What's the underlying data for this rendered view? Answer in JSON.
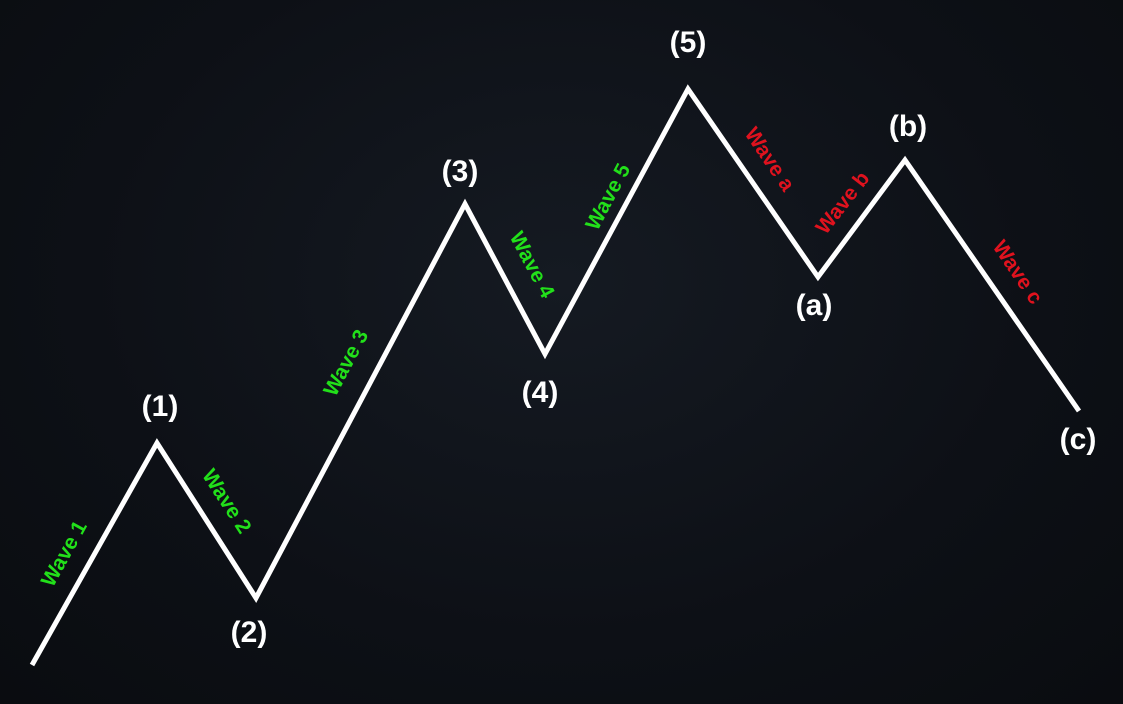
{
  "diagram": {
    "point_labels": [
      "(1)",
      "(2)",
      "(3)",
      "(4)",
      "(5)",
      "(a)",
      "(b)",
      "(c)"
    ],
    "wave_labels": [
      "Wave 1",
      "Wave 2",
      "Wave 3",
      "Wave 4",
      "Wave 5",
      "Wave a",
      "Wave b",
      "Wave c"
    ],
    "colors": {
      "background": "#0d1016",
      "line": "#ffffff",
      "point_label": "#ffffff",
      "impulse_wave": "#22e01a",
      "corrective_wave": "#e0121e"
    }
  }
}
